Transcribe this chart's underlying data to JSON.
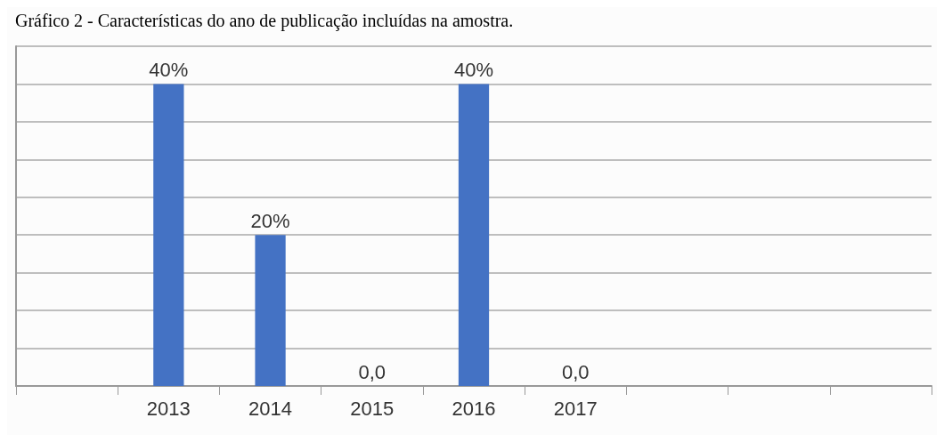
{
  "chart_data": {
    "type": "bar",
    "title": "Gráfico 2 - Características do ano de publicação incluídas na amostra.",
    "categories": [
      null,
      "2013",
      "2014",
      "2015",
      "2016",
      "2017",
      null,
      null,
      null
    ],
    "values": [
      null,
      40,
      20,
      0,
      40,
      0,
      null,
      null,
      null
    ],
    "value_labels": [
      null,
      "40%",
      "20%",
      "0,0",
      "40%",
      "0,0",
      null,
      null,
      null
    ],
    "color": "#4472c4",
    "ylim": [
      0,
      45
    ],
    "yticks": [
      {
        "value": 0,
        "label": null
      },
      {
        "value": 5,
        "label": null
      },
      {
        "value": 10,
        "label": null
      },
      {
        "value": 15,
        "label": null
      },
      {
        "value": 20,
        "label": null
      },
      {
        "value": 25,
        "label": null
      },
      {
        "value": 30,
        "label": null
      },
      {
        "value": 35,
        "label": null
      },
      {
        "value": 40,
        "label": null
      },
      {
        "value": 45,
        "label": null
      }
    ],
    "grid": "y",
    "tick_labels": "x"
  }
}
